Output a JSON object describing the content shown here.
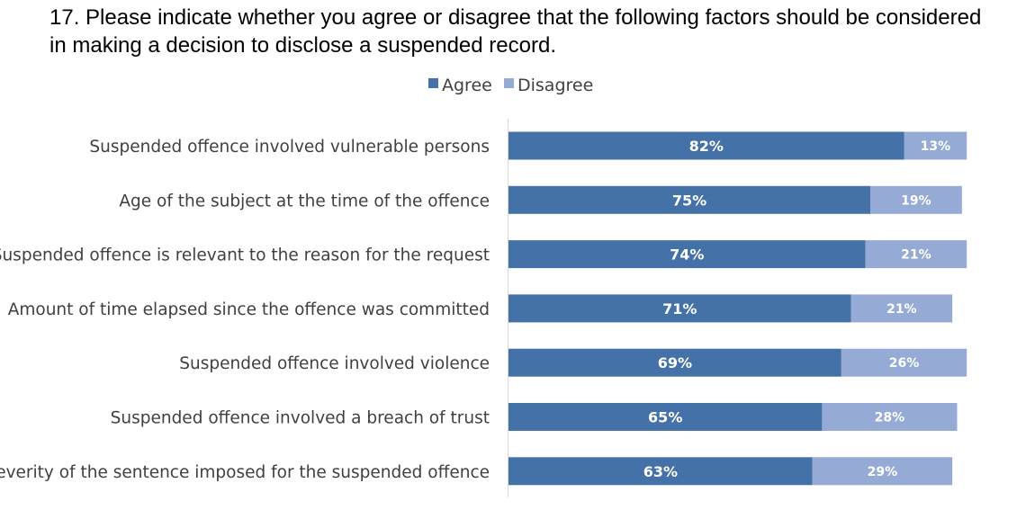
{
  "chart_data": {
    "type": "bar",
    "orientation": "horizontal",
    "stacked": true,
    "title": "17. Please indicate whether you agree or disagree that the following factors should be considered in making a decision to disclose a suspended record.",
    "categories": [
      "Suspended offence involved vulnerable persons",
      "Age of the subject at the time of the offence",
      "Suspended offence is relevant to the reason for the request",
      "Amount of time elapsed since the offence was committed",
      "Suspended offence involved violence",
      "Suspended offence involved a breach of trust",
      "Severity of the sentence imposed for the suspended offence"
    ],
    "series": [
      {
        "name": "Agree",
        "color": "#4472a8",
        "values": [
          82,
          75,
          74,
          71,
          69,
          65,
          63
        ],
        "labels": [
          "82%",
          "75%",
          "74%",
          "71%",
          "69%",
          "65%",
          "63%"
        ]
      },
      {
        "name": "Disagree",
        "color": "#95abd6",
        "values": [
          13,
          19,
          21,
          21,
          26,
          28,
          29
        ],
        "labels": [
          "13%",
          "19%",
          "21%",
          "21%",
          "26%",
          "28%",
          "29%"
        ]
      }
    ],
    "xlim": [
      0,
      100
    ],
    "grid": false,
    "legend": "top-center"
  }
}
